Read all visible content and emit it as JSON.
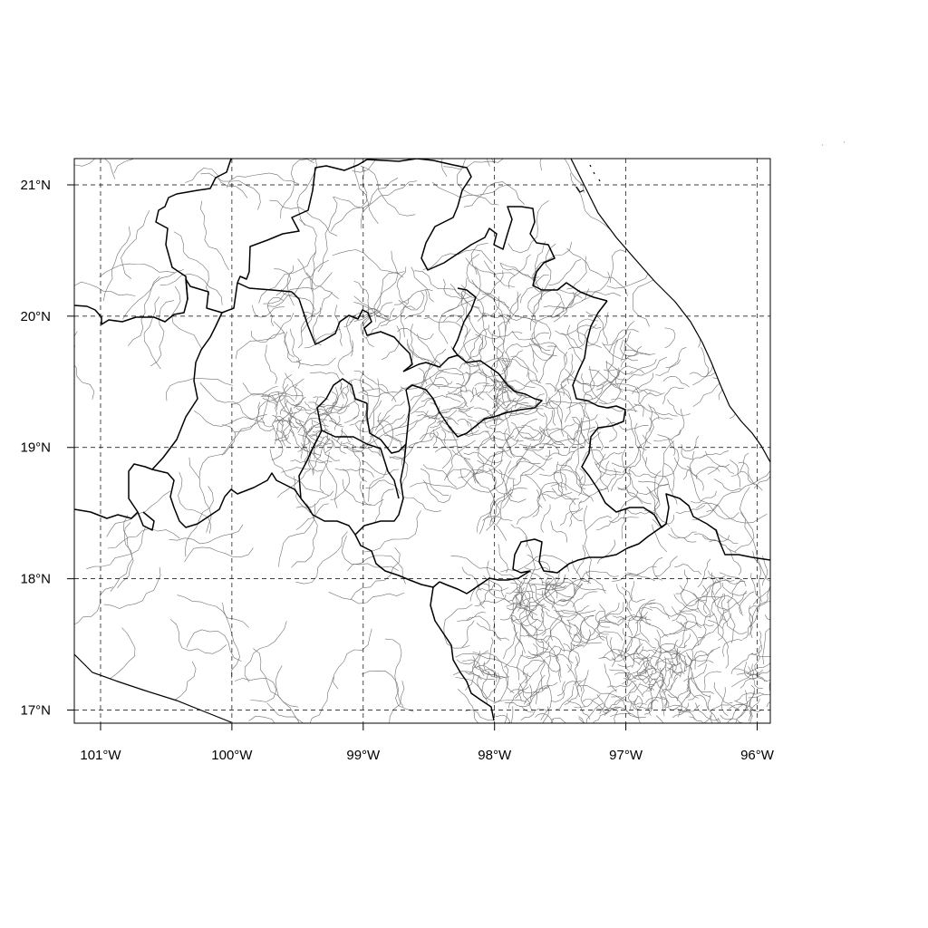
{
  "map": {
    "x_ticks": [
      "101°W",
      "100°W",
      "99°W",
      "98°W",
      "97°W",
      "96°W"
    ],
    "y_ticks": [
      "21°N",
      "20°N",
      "19°N",
      "18°N",
      "17°N"
    ],
    "lon_values": [
      -101,
      -100,
      -99,
      -98,
      -97,
      -96
    ],
    "lat_values": [
      21,
      20,
      19,
      18,
      17
    ],
    "lon_range": [
      -101.2,
      -95.9
    ],
    "lat_range": [
      16.9,
      21.2
    ],
    "grid": true,
    "colors": {
      "state_border": "#000000",
      "municipal_border": "#707070",
      "background": "#ffffff"
    }
  }
}
